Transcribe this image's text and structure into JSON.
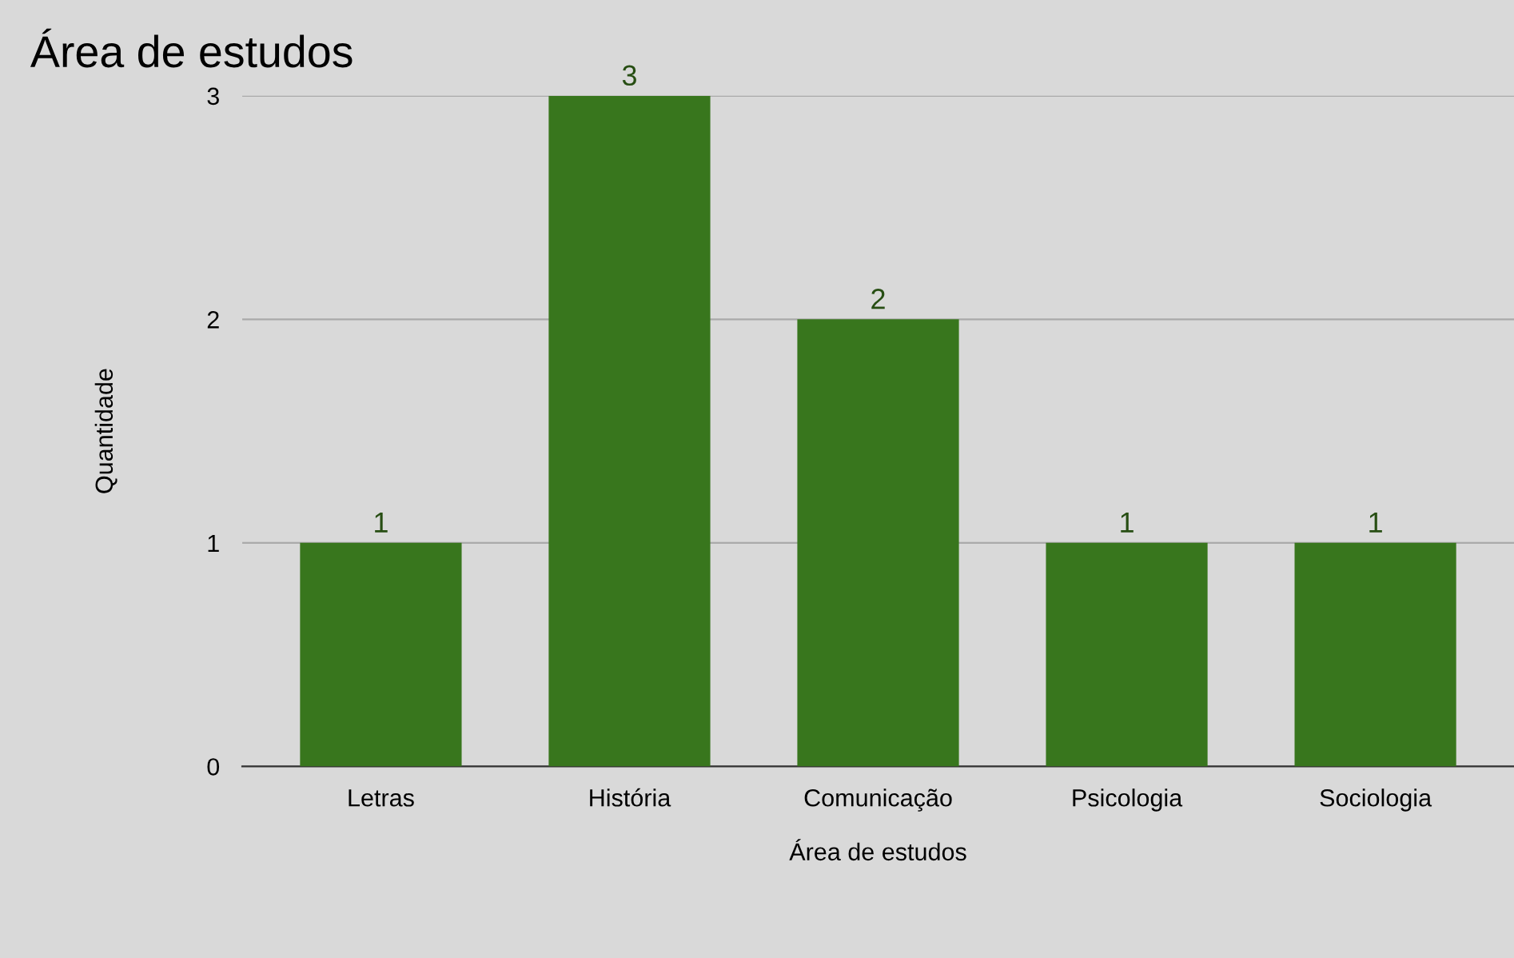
{
  "chart_data": {
    "type": "bar",
    "title": "Área de estudos",
    "xlabel": "Área de estudos",
    "ylabel": "Quantidade",
    "categories": [
      "Letras",
      "História",
      "Comunicação",
      "Psicologia",
      "Sociologia"
    ],
    "values": [
      1,
      3,
      2,
      1,
      1
    ],
    "color": "#38761d",
    "ylim": [
      0,
      3
    ],
    "yticks": [
      0,
      1,
      2,
      3
    ],
    "grid": "y",
    "data_labels": true
  }
}
